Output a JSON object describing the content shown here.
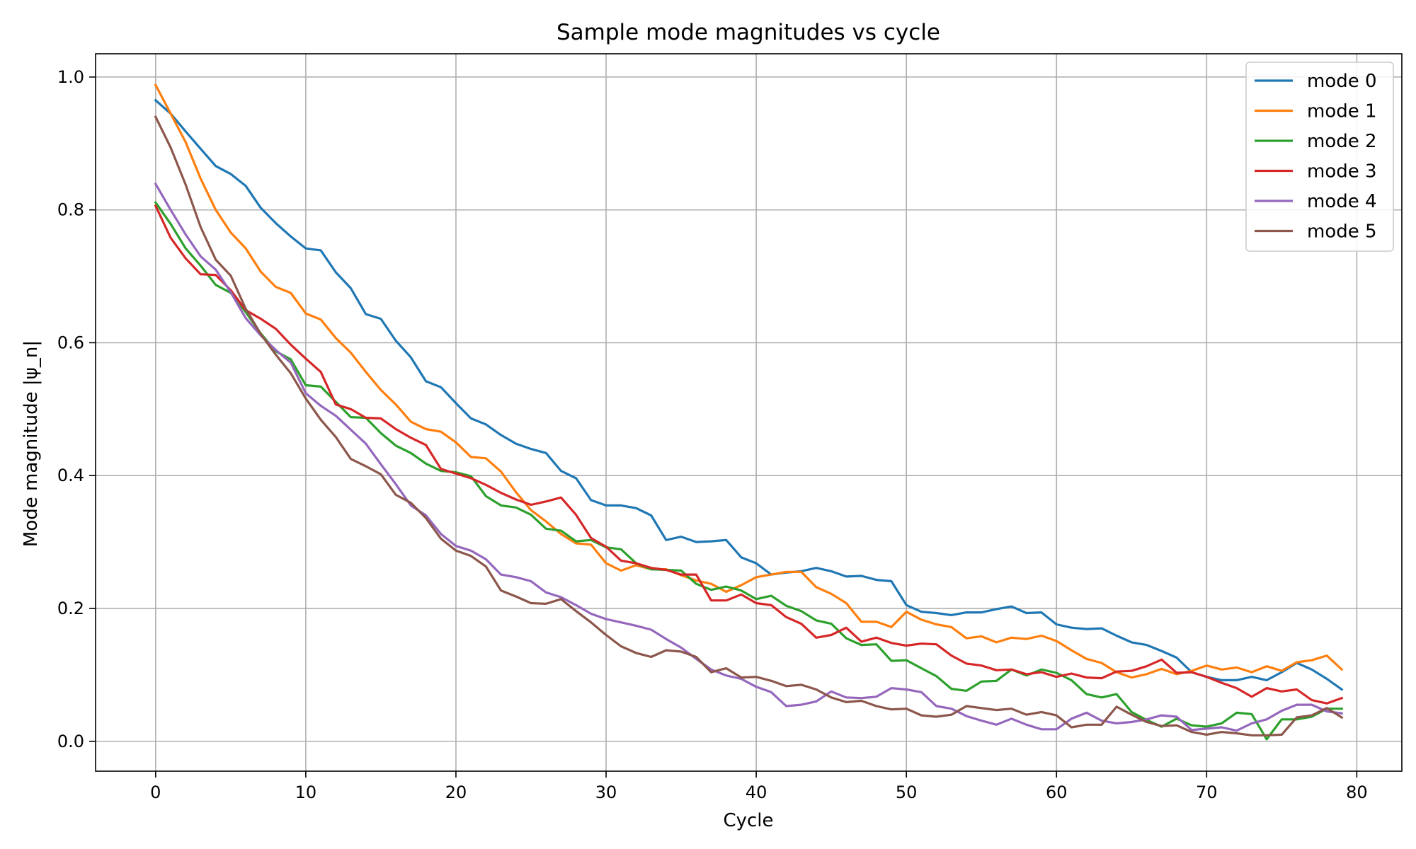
{
  "chart_data": {
    "type": "line",
    "title": "Sample mode magnitudes vs cycle",
    "xlabel": "Cycle",
    "ylabel": "Mode magnitude |ψ_n|",
    "xlim": [
      -4,
      83
    ],
    "ylim": [
      -0.045,
      1.035
    ],
    "xticks": [
      0,
      10,
      20,
      30,
      40,
      50,
      60,
      70,
      80
    ],
    "yticks": [
      0.0,
      0.2,
      0.4,
      0.6,
      0.8,
      1.0
    ],
    "xtick_labels": [
      "0",
      "10",
      "20",
      "30",
      "40",
      "50",
      "60",
      "70",
      "80"
    ],
    "ytick_labels": [
      "0.0",
      "0.2",
      "0.4",
      "0.6",
      "0.8",
      "1.0"
    ],
    "grid": true,
    "legend_position": "top-right",
    "x": [
      0,
      1,
      2,
      3,
      4,
      5,
      6,
      7,
      8,
      9,
      10,
      11,
      12,
      13,
      14,
      15,
      16,
      17,
      18,
      19,
      20,
      21,
      22,
      23,
      24,
      25,
      26,
      27,
      28,
      29,
      30,
      31,
      32,
      33,
      34,
      35,
      36,
      37,
      38,
      39,
      40,
      41,
      42,
      43,
      44,
      45,
      46,
      47,
      48,
      49,
      50,
      51,
      52,
      53,
      54,
      55,
      56,
      57,
      58,
      59,
      60,
      61,
      62,
      63,
      64,
      65,
      66,
      67,
      68,
      69,
      70,
      71,
      72,
      73,
      74,
      75,
      76,
      77,
      78,
      79
    ],
    "series": [
      {
        "name": "mode 0",
        "color": "#1f77b4",
        "values": [
          0.965,
          0.945,
          0.918,
          0.892,
          0.866,
          0.854,
          0.836,
          0.803,
          0.78,
          0.76,
          0.742,
          0.739,
          0.706,
          0.682,
          0.643,
          0.636,
          0.603,
          0.578,
          0.542,
          0.533,
          0.509,
          0.486,
          0.477,
          0.461,
          0.448,
          0.44,
          0.434,
          0.407,
          0.396,
          0.363,
          0.355,
          0.355,
          0.351,
          0.34,
          0.303,
          0.308,
          0.3,
          0.301,
          0.303,
          0.277,
          0.268,
          0.251,
          0.254,
          0.256,
          0.261,
          0.256,
          0.248,
          0.249,
          0.243,
          0.241,
          0.205,
          0.195,
          0.193,
          0.19,
          0.194,
          0.194,
          0.199,
          0.203,
          0.193,
          0.194,
          0.176,
          0.171,
          0.169,
          0.17,
          0.159,
          0.149,
          0.145,
          0.136,
          0.126,
          0.104,
          0.097,
          0.092,
          0.092,
          0.097,
          0.092,
          0.104,
          0.118,
          0.108,
          0.094,
          0.078
        ]
      },
      {
        "name": "mode 1",
        "color": "#ff7f0e",
        "values": [
          0.988,
          0.945,
          0.902,
          0.847,
          0.8,
          0.766,
          0.742,
          0.707,
          0.684,
          0.675,
          0.644,
          0.635,
          0.607,
          0.585,
          0.556,
          0.529,
          0.507,
          0.481,
          0.47,
          0.466,
          0.45,
          0.428,
          0.426,
          0.406,
          0.375,
          0.348,
          0.331,
          0.312,
          0.298,
          0.296,
          0.268,
          0.257,
          0.265,
          0.259,
          0.259,
          0.25,
          0.242,
          0.237,
          0.225,
          0.235,
          0.247,
          0.251,
          0.255,
          0.255,
          0.232,
          0.222,
          0.208,
          0.18,
          0.18,
          0.172,
          0.195,
          0.183,
          0.176,
          0.172,
          0.155,
          0.158,
          0.149,
          0.156,
          0.154,
          0.159,
          0.151,
          0.137,
          0.124,
          0.118,
          0.104,
          0.096,
          0.101,
          0.109,
          0.101,
          0.106,
          0.114,
          0.108,
          0.111,
          0.104,
          0.113,
          0.106,
          0.119,
          0.122,
          0.129,
          0.108
        ]
      },
      {
        "name": "mode 2",
        "color": "#2ca02c",
        "values": [
          0.811,
          0.779,
          0.742,
          0.716,
          0.687,
          0.675,
          0.646,
          0.614,
          0.587,
          0.575,
          0.536,
          0.534,
          0.511,
          0.488,
          0.487,
          0.464,
          0.445,
          0.434,
          0.418,
          0.407,
          0.405,
          0.399,
          0.369,
          0.355,
          0.352,
          0.341,
          0.32,
          0.317,
          0.301,
          0.303,
          0.292,
          0.289,
          0.268,
          0.259,
          0.258,
          0.257,
          0.237,
          0.228,
          0.233,
          0.227,
          0.214,
          0.219,
          0.204,
          0.196,
          0.182,
          0.177,
          0.155,
          0.145,
          0.146,
          0.121,
          0.122,
          0.11,
          0.098,
          0.079,
          0.076,
          0.09,
          0.091,
          0.108,
          0.099,
          0.108,
          0.103,
          0.092,
          0.071,
          0.066,
          0.071,
          0.044,
          0.032,
          0.022,
          0.034,
          0.024,
          0.022,
          0.027,
          0.043,
          0.041,
          0.003,
          0.033,
          0.033,
          0.037,
          0.049,
          0.049
        ]
      },
      {
        "name": "mode 3",
        "color": "#d62728",
        "values": [
          0.806,
          0.758,
          0.727,
          0.703,
          0.702,
          0.679,
          0.649,
          0.636,
          0.621,
          0.597,
          0.576,
          0.556,
          0.507,
          0.5,
          0.487,
          0.486,
          0.47,
          0.457,
          0.446,
          0.41,
          0.403,
          0.396,
          0.386,
          0.374,
          0.364,
          0.356,
          0.361,
          0.367,
          0.341,
          0.306,
          0.293,
          0.272,
          0.268,
          0.261,
          0.258,
          0.251,
          0.251,
          0.212,
          0.212,
          0.221,
          0.208,
          0.205,
          0.187,
          0.177,
          0.156,
          0.16,
          0.171,
          0.15,
          0.156,
          0.148,
          0.144,
          0.147,
          0.146,
          0.129,
          0.117,
          0.114,
          0.107,
          0.108,
          0.101,
          0.104,
          0.097,
          0.102,
          0.096,
          0.095,
          0.105,
          0.106,
          0.113,
          0.123,
          0.103,
          0.104,
          0.097,
          0.088,
          0.08,
          0.067,
          0.08,
          0.075,
          0.078,
          0.062,
          0.057,
          0.065
        ]
      },
      {
        "name": "mode 4",
        "color": "#9467bd",
        "values": [
          0.839,
          0.8,
          0.763,
          0.73,
          0.71,
          0.676,
          0.637,
          0.611,
          0.589,
          0.57,
          0.524,
          0.505,
          0.49,
          0.469,
          0.448,
          0.417,
          0.387,
          0.355,
          0.34,
          0.312,
          0.294,
          0.287,
          0.274,
          0.251,
          0.247,
          0.241,
          0.224,
          0.217,
          0.205,
          0.192,
          0.184,
          0.179,
          0.174,
          0.168,
          0.154,
          0.141,
          0.124,
          0.108,
          0.099,
          0.094,
          0.082,
          0.074,
          0.053,
          0.055,
          0.06,
          0.075,
          0.066,
          0.065,
          0.067,
          0.08,
          0.078,
          0.074,
          0.053,
          0.049,
          0.038,
          0.031,
          0.025,
          0.034,
          0.025,
          0.018,
          0.018,
          0.034,
          0.043,
          0.031,
          0.027,
          0.029,
          0.033,
          0.039,
          0.037,
          0.017,
          0.019,
          0.021,
          0.016,
          0.027,
          0.033,
          0.046,
          0.055,
          0.055,
          0.045,
          0.042
        ]
      },
      {
        "name": "mode 5",
        "color": "#8c564b",
        "values": [
          0.94,
          0.894,
          0.838,
          0.774,
          0.725,
          0.701,
          0.651,
          0.613,
          0.582,
          0.554,
          0.516,
          0.484,
          0.458,
          0.425,
          0.414,
          0.402,
          0.371,
          0.359,
          0.336,
          0.305,
          0.287,
          0.279,
          0.263,
          0.227,
          0.218,
          0.208,
          0.207,
          0.214,
          0.196,
          0.179,
          0.16,
          0.143,
          0.133,
          0.127,
          0.137,
          0.135,
          0.127,
          0.104,
          0.11,
          0.096,
          0.097,
          0.091,
          0.083,
          0.085,
          0.078,
          0.066,
          0.059,
          0.061,
          0.053,
          0.048,
          0.049,
          0.039,
          0.037,
          0.04,
          0.053,
          0.05,
          0.047,
          0.049,
          0.04,
          0.044,
          0.039,
          0.021,
          0.025,
          0.025,
          0.052,
          0.04,
          0.029,
          0.023,
          0.024,
          0.014,
          0.01,
          0.014,
          0.012,
          0.009,
          0.009,
          0.01,
          0.036,
          0.039,
          0.05,
          0.036
        ]
      }
    ]
  }
}
